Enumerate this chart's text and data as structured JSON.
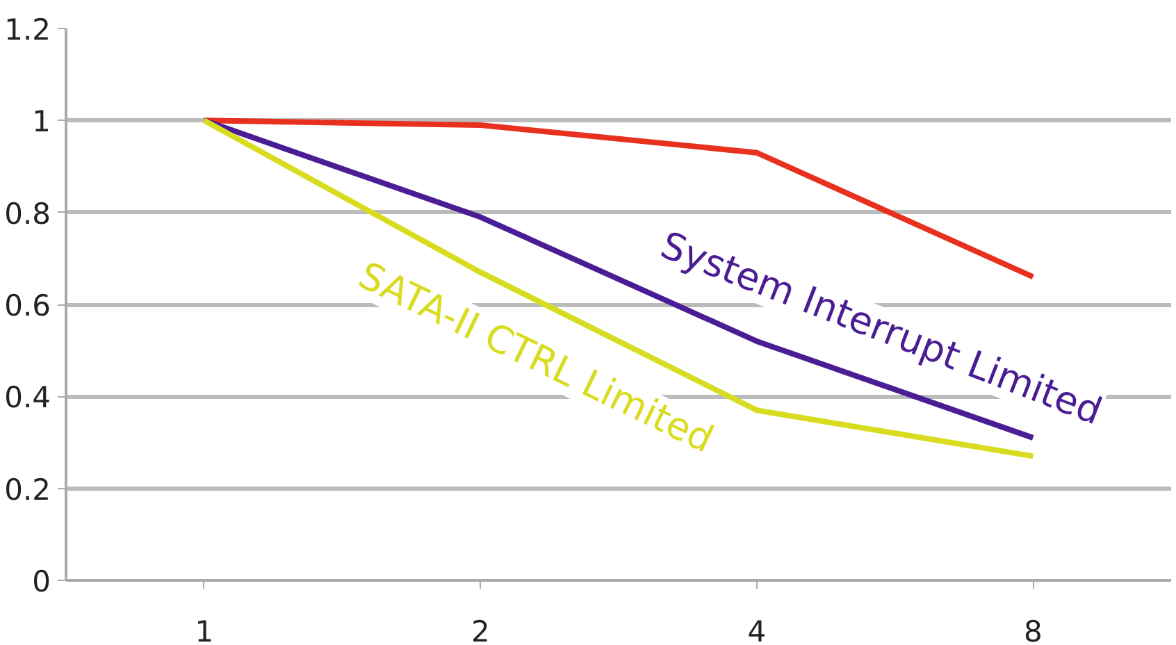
{
  "chart_data": {
    "type": "line",
    "categories": [
      "1",
      "2",
      "4",
      "8"
    ],
    "series": [
      {
        "color": "#e8301e",
        "values": [
          1,
          0.99,
          0.93,
          0.66
        ]
      },
      {
        "name": "System Interrupt Limited",
        "color": "#4b1d94",
        "values": [
          1,
          0.79,
          0.52,
          0.31
        ]
      },
      {
        "name": "SATA-II CTRL Limited",
        "color": "#d9dc1e",
        "values": [
          1,
          0.67,
          0.37,
          0.27
        ]
      }
    ],
    "ylim": [
      0,
      1.2
    ],
    "yticks": [
      0,
      {
        "value": 0.2,
        "label": "0.2"
      },
      {
        "value": 0.4,
        "label": "0.4"
      },
      {
        "value": 0.6,
        "label": "0.6"
      },
      {
        "value": 0.8,
        "label": "0.8"
      },
      1,
      {
        "value": 1.2,
        "label": "1.2"
      }
    ],
    "grid": "y",
    "marker": "none",
    "line_style": "solid"
  }
}
